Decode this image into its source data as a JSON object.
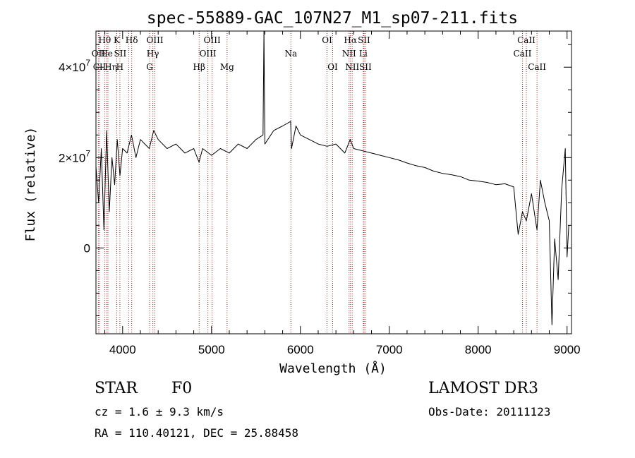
{
  "chart_data": {
    "type": "line",
    "title": "spec-55889-GAC_107N27_M1_sp07-211.fits",
    "xlabel": "Wavelength (Å)",
    "ylabel": "Flux (relative)",
    "xlim": [
      3700,
      9050
    ],
    "ylim": [
      -19000000,
      48000000
    ],
    "x_ticks": [
      4000,
      5000,
      6000,
      7000,
      8000,
      9000
    ],
    "x_tick_labels": [
      "4000",
      "5000",
      "6000",
      "7000",
      "8000",
      "9000"
    ],
    "y_ticks": [
      0,
      20000000,
      40000000
    ],
    "y_tick_labels": [
      {
        "base": "0",
        "exp": ""
      },
      {
        "base": "2×10",
        "exp": "7"
      },
      {
        "base": "4×10",
        "exp": "7"
      }
    ],
    "grid": false,
    "series": [
      {
        "name": "flux",
        "color": "#000000",
        "x": [
          3700,
          3730,
          3760,
          3790,
          3820,
          3850,
          3880,
          3910,
          3940,
          3970,
          4000,
          4050,
          4100,
          4150,
          4200,
          4250,
          4300,
          4350,
          4400,
          4500,
          4600,
          4700,
          4800,
          4860,
          4900,
          5000,
          5100,
          5200,
          5300,
          5400,
          5500,
          5580,
          5590,
          5600,
          5700,
          5800,
          5890,
          5900,
          5950,
          6000,
          6100,
          6200,
          6300,
          6400,
          6500,
          6560,
          6600,
          6700,
          6800,
          6900,
          7000,
          7100,
          7200,
          7300,
          7400,
          7500,
          7600,
          7700,
          7800,
          7900,
          8000,
          8100,
          8200,
          8300,
          8400,
          8450,
          8498,
          8542,
          8600,
          8662,
          8700,
          8750,
          8800,
          8830,
          8860,
          8900,
          8940,
          8980,
          9000,
          9020
        ],
        "y": [
          18000000,
          10000000,
          22000000,
          4000000,
          26000000,
          8000000,
          20000000,
          14000000,
          24000000,
          16000000,
          22000000,
          21000000,
          25000000,
          20000000,
          24000000,
          23000000,
          22000000,
          26000000,
          24000000,
          22000000,
          23000000,
          21000000,
          22000000,
          19000000,
          22000000,
          20500000,
          22000000,
          21000000,
          23000000,
          22000000,
          24000000,
          25000000,
          48000000,
          23000000,
          26000000,
          27000000,
          28000000,
          22000000,
          27000000,
          25000000,
          24000000,
          23000000,
          22500000,
          23000000,
          21000000,
          24000000,
          22000000,
          21500000,
          21000000,
          20500000,
          20000000,
          19500000,
          18800000,
          18200000,
          17800000,
          17000000,
          16500000,
          16200000,
          15800000,
          15000000,
          14800000,
          14500000,
          14000000,
          14200000,
          13500000,
          3000000,
          8000000,
          6000000,
          12000000,
          4000000,
          15000000,
          10000000,
          6000000,
          -17000000,
          2000000,
          -7000000,
          13000000,
          22000000,
          -2000000,
          5000000
        ]
      }
    ],
    "line_markers": [
      {
        "name": "CII",
        "x": 3740,
        "label_row": 2,
        "label_dx": 0
      },
      {
        "name": "OII",
        "x": 3727,
        "label_row": 1,
        "label_dx": 0
      },
      {
        "name": "Hθ",
        "x": 3798,
        "label_row": 0,
        "label_dx": 0
      },
      {
        "name": "He",
        "x": 3820,
        "label_row": 1,
        "label_dx": 0
      },
      {
        "name": "Hη",
        "x": 3835,
        "label_row": 2,
        "label_dx": 4
      },
      {
        "name": "K",
        "x": 3934,
        "label_row": 0,
        "label_dx": 0
      },
      {
        "name": "SII",
        "x": 4068,
        "label_row": 1,
        "label_dx": -12
      },
      {
        "name": "H",
        "x": 3969,
        "label_row": 2,
        "label_dx": 0
      },
      {
        "name": "Hδ",
        "x": 4102,
        "label_row": 0,
        "label_dx": 0
      },
      {
        "name": "OIII",
        "x": 4363,
        "label_row": 0,
        "label_dx": 0
      },
      {
        "name": "Hγ",
        "x": 4340,
        "label_row": 1,
        "label_dx": 0
      },
      {
        "name": "G",
        "x": 4304,
        "label_row": 2,
        "label_dx": 0
      },
      {
        "name": "Hβ",
        "x": 4861,
        "label_row": 2,
        "label_dx": 0
      },
      {
        "name": "OIII",
        "x": 4959,
        "label_row": 1,
        "label_dx": 0
      },
      {
        "name": "OIII",
        "x": 5007,
        "label_row": 0,
        "label_dx": 0
      },
      {
        "name": "Mg",
        "x": 5175,
        "label_row": 2,
        "label_dx": 0
      },
      {
        "name": "Na",
        "x": 5893,
        "label_row": 1,
        "label_dx": 0
      },
      {
        "name": "OI",
        "x": 6300,
        "label_row": 0,
        "label_dx": 0
      },
      {
        "name": "OI",
        "x": 6363,
        "label_row": 2,
        "label_dx": 0
      },
      {
        "name": "NII",
        "x": 6548,
        "label_row": 1,
        "label_dx": 0
      },
      {
        "name": "Hα",
        "x": 6563,
        "label_row": 0,
        "label_dx": 0
      },
      {
        "name": "NII",
        "x": 6583,
        "label_row": 2,
        "label_dx": 0
      },
      {
        "name": "SII",
        "x": 6716,
        "label_row": 0,
        "label_dx": 0
      },
      {
        "name": "Li",
        "x": 6708,
        "label_row": 1,
        "label_dx": 0
      },
      {
        "name": "SII",
        "x": 6731,
        "label_row": 2,
        "label_dx": 0
      },
      {
        "name": "CaII",
        "x": 8542,
        "label_row": 0,
        "label_dx": 0
      },
      {
        "name": "CaII",
        "x": 8498,
        "label_row": 1,
        "label_dx": 0
      },
      {
        "name": "CaII",
        "x": 8662,
        "label_row": 2,
        "label_dx": 0
      }
    ],
    "marker_color": "#b22222"
  },
  "info": {
    "object_class": "STAR",
    "subclass": "F0",
    "survey": "LAMOST DR3",
    "redshift_text": "cz = 1.6 ± 9.3 km/s",
    "obs_date": "Obs-Date: 20111123",
    "coords": "RA = 110.40121, DEC =  25.88458"
  }
}
